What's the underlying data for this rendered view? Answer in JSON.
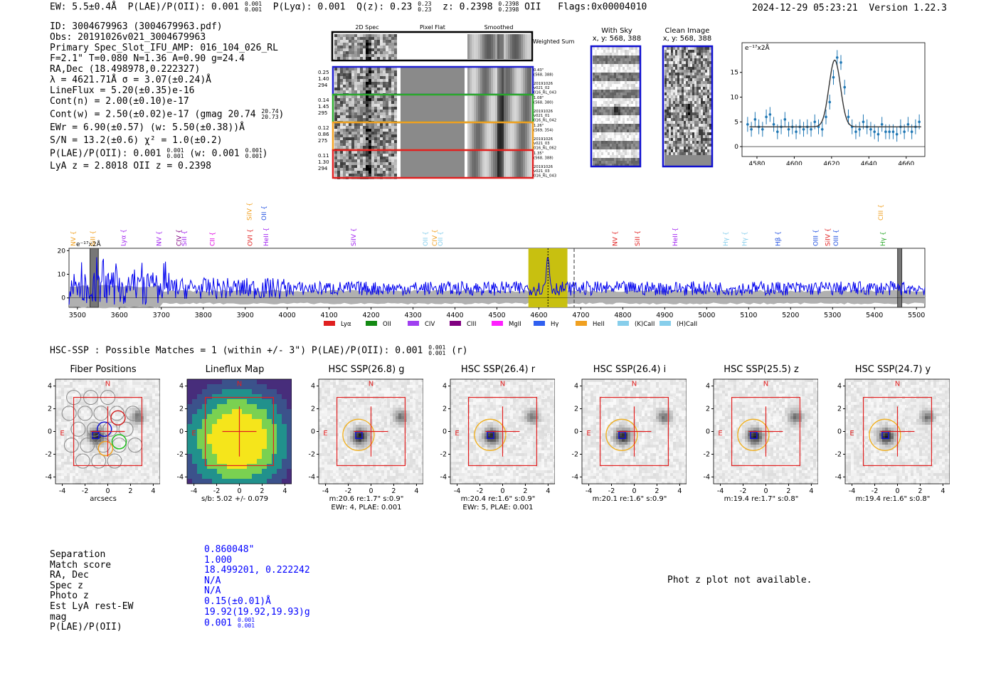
{
  "header": {
    "ew": "EW: 5.5±0.4Å",
    "plae": "P(LAE)/P(OII): 0.001",
    "plae_sup": "0.001",
    "plae_sub": "0.001",
    "plya": "P(Lyα): 0.001",
    "qz": "Q(z): 0.23",
    "qz_sup": "0.23",
    "qz_sub": "0.23",
    "z": "z: 0.2398",
    "z_sup": "0.2398",
    "z_sub": "0.2398",
    "z_line": "OII",
    "flags": "Flags:0x00004010",
    "timestamp": "2024-12-29 05:23:21",
    "version": "Version 1.22.3"
  },
  "info": {
    "lines": [
      "ID: 3004679963 (3004679963.pdf)",
      "Obs: 20191026v021_3004679963",
      "Primary Spec_Slot_IFU_AMP: 016_104_026_RL",
      "F=2.1\"  T=0.080  N=1.36  A=0.90  g=24.4",
      "RA,Dec (18.498978,0.222327)",
      "λ = 4621.71Å  σ = 3.07(±0.24)Å",
      "LineFlux = 5.20(±0.35)e-16",
      "Cont(n) = 2.00(±0.10)e-17"
    ],
    "contw": "Cont(w) = 2.50(±0.02)e-17 (gmag 20.74",
    "contw_sup": "20.74",
    "contw_sub": "20.73",
    "contw_end": ")",
    "ewr": "EWr = 6.90(±0.57) (w: 5.50(±0.38))Å",
    "sn": "S/N = 13.2(±0.6)  χ² = 1.0(±0.2)",
    "plae": "P(LAE)/P(OII): 0.001",
    "plae_sup": "0.001",
    "plae_sub": "0.001",
    "plae_w": "(w: 0.001",
    "plae_w_sup": "0.001",
    "plae_w_sub": "0.001",
    "plae_end": ")",
    "lya": "LyA z = 2.8018   OII z = 0.2398"
  },
  "cutouts": {
    "col_labels": [
      "2D Spec",
      "Pixel Flat",
      "Smoothed"
    ],
    "weighted_label": "Weighted Sum",
    "rows": [
      {
        "left": [
          "0.25",
          "1.40",
          "294"
        ],
        "right": [
          "0.43\"",
          "(568, 388)",
          "",
          "20191026",
          "v021_02",
          "016_RL_043"
        ],
        "color": "#1f1fd0"
      },
      {
        "left": [
          "0.14",
          "1.45",
          "295"
        ],
        "right": [
          "1.08\"",
          "(568, 380)",
          "",
          "20191026",
          "v021_01",
          "016_RL_042"
        ],
        "color": "#2aa82a"
      },
      {
        "left": [
          "0.12",
          "0.86",
          "275"
        ],
        "right": [
          "1.26\"",
          "(569, 354)",
          "",
          "20191026",
          "v021_03",
          "016_RL_062"
        ],
        "color": "#f0a020"
      },
      {
        "left": [
          "0.11",
          "1.30",
          "294"
        ],
        "right": [
          "1.35\"",
          "(568, 388)",
          "",
          "20191026",
          "v021_03",
          "016_RL_043"
        ],
        "color": "#e02020"
      }
    ]
  },
  "sky": {
    "with_sky": "With Sky",
    "with_sky_xy": "x, y: 568, 388",
    "clean": "Clean Image",
    "clean_xy": "x, y: 568, 388"
  },
  "chart_data": [
    {
      "type": "scatter",
      "title": "",
      "ylabel_scale": "e⁻¹⁷x2Å",
      "x": [
        4575,
        4577,
        4579,
        4581,
        4583,
        4585,
        4587,
        4589,
        4591,
        4593,
        4595,
        4597,
        4599,
        4601,
        4603,
        4605,
        4607,
        4609,
        4611,
        4613,
        4615,
        4617,
        4619,
        4621,
        4623,
        4625,
        4627,
        4629,
        4631,
        4633,
        4635,
        4637,
        4639,
        4641,
        4643,
        4645,
        4647,
        4649,
        4651,
        4653,
        4655,
        4657,
        4659,
        4661,
        4663,
        4665,
        4667
      ],
      "y": [
        4.5,
        3.5,
        5.5,
        4,
        3.5,
        6,
        6.5,
        4.5,
        3,
        4,
        5.5,
        3.5,
        4,
        3,
        4,
        3.5,
        4,
        3.5,
        5,
        4,
        3.5,
        6,
        9,
        14,
        18,
        17,
        12,
        6,
        4,
        3,
        3.5,
        5,
        4,
        3.5,
        3,
        2.5,
        4.5,
        3,
        3,
        3,
        2.5,
        4,
        3,
        4.5,
        3,
        4,
        5
      ],
      "fit_baseline": 4,
      "fit_peak": 17.5,
      "fit_center": 4621.7,
      "fit_sigma": 3.07,
      "xlim": [
        4572,
        4670
      ],
      "ylim": [
        -2,
        21
      ],
      "xticks": [
        4580,
        4600,
        4620,
        4640,
        4660
      ],
      "yticks": [
        0,
        5,
        10,
        15
      ]
    },
    {
      "type": "line",
      "title": "",
      "ylabel_scale": "e⁻¹⁷x2Å",
      "xlim": [
        3480,
        5520
      ],
      "ylim": [
        -4,
        21
      ],
      "xticks": [
        3500,
        3600,
        3700,
        3800,
        3900,
        4000,
        4100,
        4200,
        4300,
        4400,
        4500,
        4600,
        4700,
        4800,
        4900,
        5000,
        5100,
        5200,
        5300,
        5400,
        5500
      ],
      "yticks": [
        0,
        10,
        20
      ],
      "highlight_range": [
        4575,
        4668
      ],
      "line_wavelength": 4621.7,
      "dashed_wavelength": 4684,
      "bad_regions": [
        [
          3530,
          3550
        ],
        [
          5455,
          5465
        ]
      ],
      "line_labels": [
        {
          "name": "NV",
          "x": 3495,
          "row": 0,
          "color": "#f0a020"
        },
        {
          "name": "SiII",
          "x": 3542,
          "row": 0,
          "color": "#f0a020"
        },
        {
          "name": "Lyα",
          "x": 3615,
          "row": 0,
          "color": "#a020f0"
        },
        {
          "name": "NV",
          "x": 3700,
          "row": 0,
          "color": "#a020f0"
        },
        {
          "name": "CIV",
          "x": 3747,
          "row": 0,
          "color": "#800080"
        },
        {
          "name": "SiII",
          "x": 3760,
          "row": 0,
          "color": "#a020f0"
        },
        {
          "name": "CII",
          "x": 3827,
          "row": 0,
          "color": "#e000e0"
        },
        {
          "name": "SiIV",
          "x": 3915,
          "row": 1,
          "color": "#f0a020"
        },
        {
          "name": "OII",
          "x": 3950,
          "row": 1,
          "color": "#2050e0"
        },
        {
          "name": "OVI",
          "x": 3917,
          "row": 0,
          "color": "#e02020"
        },
        {
          "name": "HeII",
          "x": 3955,
          "row": 0,
          "color": "#a020f0"
        },
        {
          "name": "SiIV",
          "x": 4163,
          "row": 0,
          "color": "#a020f0"
        },
        {
          "name": "OII",
          "x": 4335,
          "row": 0,
          "color": "#87ceeb"
        },
        {
          "name": "CIV",
          "x": 4357,
          "row": 0,
          "color": "#f0a020"
        },
        {
          "name": "OII",
          "x": 4370,
          "row": 0,
          "color": "#87ceeb"
        },
        {
          "name": "NV",
          "x": 4787,
          "row": 0,
          "color": "#e02020"
        },
        {
          "name": "SiII",
          "x": 4840,
          "row": 0,
          "color": "#e02020"
        },
        {
          "name": "HeII",
          "x": 4930,
          "row": 0,
          "color": "#a020f0"
        },
        {
          "name": "Hγ",
          "x": 5050,
          "row": 0,
          "color": "#87ceeb"
        },
        {
          "name": "Hγ",
          "x": 5095,
          "row": 0,
          "color": "#87ceeb"
        },
        {
          "name": "Hβ",
          "x": 5175,
          "row": 0,
          "color": "#2050e0"
        },
        {
          "name": "OIII",
          "x": 5265,
          "row": 0,
          "color": "#2050e0"
        },
        {
          "name": "SiIV",
          "x": 5294,
          "row": 0,
          "color": "#e02020"
        },
        {
          "name": "OIII",
          "x": 5313,
          "row": 0,
          "color": "#2050e0"
        },
        {
          "name": "CIII",
          "x": 5420,
          "row": 1,
          "color": "#f0a020"
        },
        {
          "name": "Hγ",
          "x": 5425,
          "row": 0,
          "color": "#2aa82a"
        }
      ],
      "legend": [
        {
          "name": "Lyα",
          "color": "#e02020"
        },
        {
          "name": "OII",
          "color": "#138a13"
        },
        {
          "name": "CIV",
          "color": "#a040f0"
        },
        {
          "name": "CIII",
          "color": "#800080"
        },
        {
          "name": "MgII",
          "color": "#ff20ff"
        },
        {
          "name": "Hγ",
          "color": "#3060f0"
        },
        {
          "name": "HeII",
          "color": "#f0a020"
        },
        {
          "name": "(K)CaII",
          "color": "#87ceeb"
        },
        {
          "name": "(H)CaII",
          "color": "#87ceeb"
        }
      ]
    }
  ],
  "hsc": {
    "summary": "HSC-SSP : Possible Matches = 1 (within +/- 3\")  P(LAE)/P(OII): 0.001",
    "summary_sup": "0.001",
    "summary_sub": "0.001",
    "summary_end": "(r)",
    "panels": [
      {
        "title": "Fiber Positions",
        "cap1": "arcsecs",
        "cap2": ""
      },
      {
        "title": "Lineflux Map",
        "cap1": "s/b: 5.02 +/- 0.079",
        "cap2": ""
      },
      {
        "title": "HSC SSP(26.8) g",
        "cap1": "m:20.6  re:1.7\"  s:0.9\"",
        "cap2": "EWr: 4, PLAE: 0.001"
      },
      {
        "title": "HSC SSP(26.4) r",
        "cap1": "m:20.4  re:1.6\"  s:0.9\"",
        "cap2": "EWr: 5, PLAE: 0.001"
      },
      {
        "title": "HSC SSP(26.4) i",
        "cap1": "m:20.1  re:1.6\"  s:0.9\"",
        "cap2": ""
      },
      {
        "title": "HSC SSP(25.5) z",
        "cap1": "m:19.4  re:1.7\"  s:0.8\"",
        "cap2": ""
      },
      {
        "title": "HSC SSP(24.7) y",
        "cap1": "m:19.4  re:1.6\"  s:0.8\"",
        "cap2": ""
      }
    ],
    "ticks": [
      "-4",
      "-2",
      "0",
      "2",
      "4"
    ],
    "n_label": "N",
    "e_label": "E"
  },
  "match": {
    "keys": [
      "Separation",
      "Match score",
      "RA, Dec",
      "Spec z",
      "Photo z",
      "Est LyA rest-EW",
      "mag",
      "P(LAE)/P(OII)"
    ],
    "values": [
      "0.860048\"",
      "1.000",
      "18.499201, 0.222242",
      "N/A",
      "N/A",
      "0.15(±0.01)Å",
      "19.92(19.92,19.93)g",
      "0.001"
    ],
    "plae_sup": "0.001",
    "plae_sub": "0.001",
    "photz_msg": "Phot z plot not available."
  }
}
